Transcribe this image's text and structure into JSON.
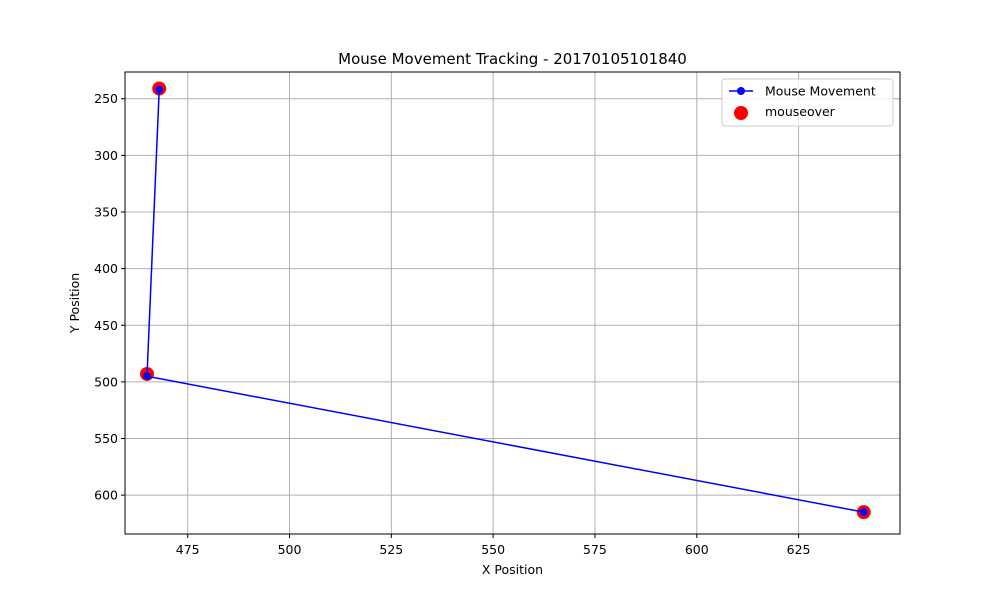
{
  "chart_data": {
    "type": "line",
    "title": "Mouse Movement Tracking - 20170105101840",
    "xlabel": "X Position",
    "ylabel": "Y Position",
    "xlim": [
      459.6,
      649.9
    ],
    "ylim": [
      634.3,
      226.4
    ],
    "y_inverted": true,
    "grid": true,
    "x_ticks": [
      475,
      500,
      525,
      550,
      575,
      600,
      625
    ],
    "y_ticks": [
      250,
      300,
      350,
      400,
      450,
      500,
      550,
      600
    ],
    "legend_position": "top-right",
    "series": [
      {
        "name": "Mouse Movement",
        "kind": "line-marker",
        "color": "#0000ff",
        "points": [
          {
            "x": 468,
            "y": 242
          },
          {
            "x": 465,
            "y": 495
          },
          {
            "x": 641,
            "y": 615
          }
        ]
      },
      {
        "name": "mouseover",
        "kind": "scatter",
        "color": "#ff0000",
        "points": [
          {
            "x": 468,
            "y": 241
          },
          {
            "x": 465,
            "y": 493
          },
          {
            "x": 641,
            "y": 615
          }
        ]
      }
    ]
  }
}
